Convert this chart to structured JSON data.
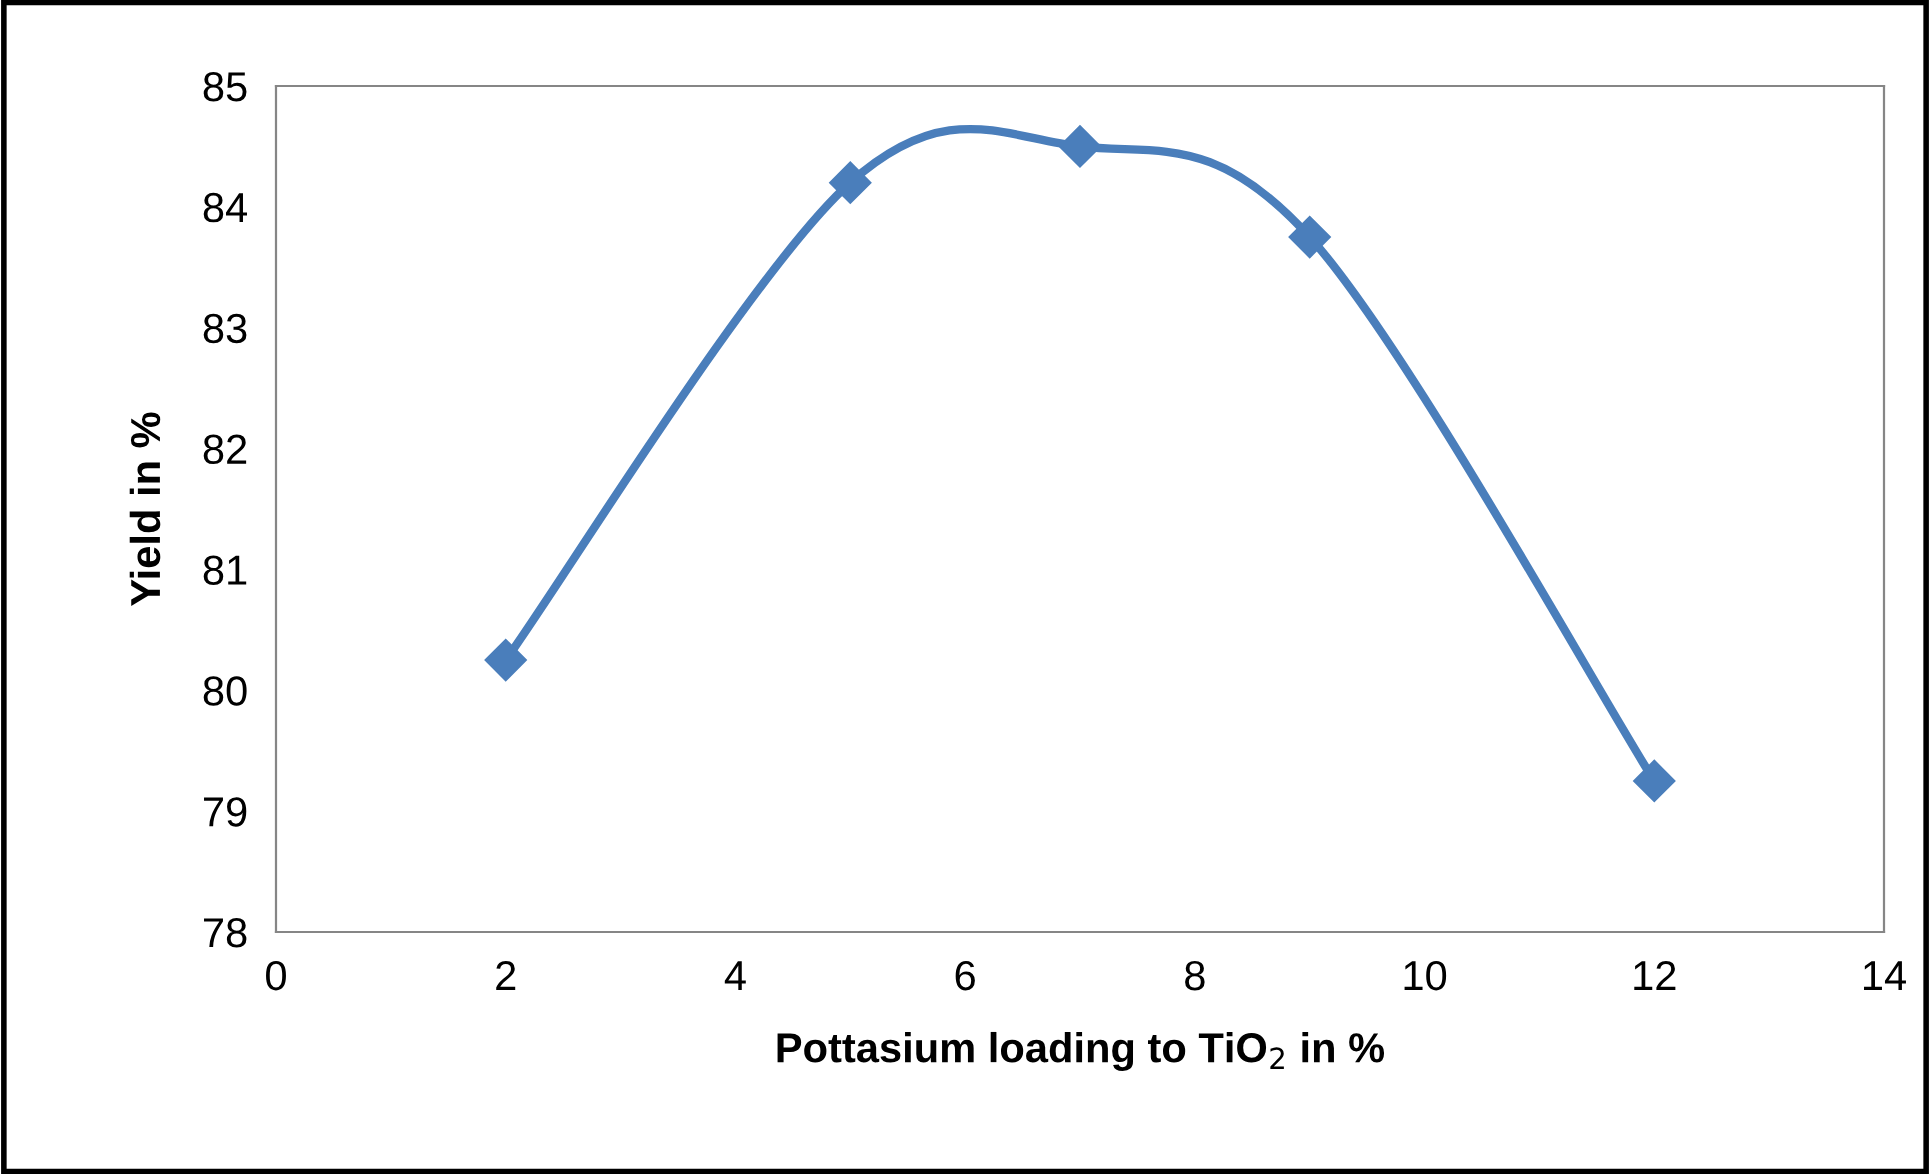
{
  "chart_data": {
    "type": "line",
    "xlabel": "Pottasium loading to TiO$_{2}$ in %",
    "ylabel": "Yield in %",
    "x": [
      2,
      5,
      7,
      9,
      12
    ],
    "series": [
      {
        "color": "#4a7ebb",
        "values": [
          80.25,
          84.2,
          84.5,
          83.75,
          79.25
        ]
      }
    ],
    "xlim": [
      0,
      14
    ],
    "xticks": [
      0,
      2,
      4,
      6,
      8,
      10,
      12,
      14
    ],
    "ylim": [
      78,
      85
    ],
    "yticks": [
      78,
      79,
      80,
      81,
      82,
      83,
      84,
      85
    ],
    "grid": false,
    "legend": false,
    "marker": "diamond",
    "line_style": "solid"
  }
}
